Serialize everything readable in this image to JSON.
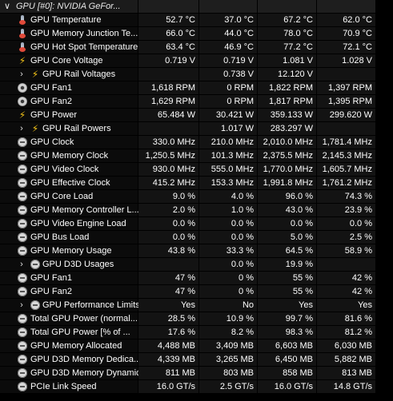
{
  "header": {
    "title": "GPU [#0]: NVIDIA GeFor..."
  },
  "rows": [
    {
      "label": "GPU Temperature",
      "icon": "thermometer-icon",
      "v": [
        "52.7 °C",
        "37.0 °C",
        "67.2 °C",
        "62.0 °C"
      ]
    },
    {
      "label": "GPU Memory Junction Te...",
      "icon": "thermometer-icon",
      "v": [
        "66.0 °C",
        "44.0 °C",
        "78.0 °C",
        "70.9 °C"
      ]
    },
    {
      "label": "GPU Hot Spot Temperature",
      "icon": "thermometer-icon",
      "v": [
        "63.4 °C",
        "46.9 °C",
        "77.2 °C",
        "72.1 °C"
      ]
    },
    {
      "label": "GPU Core Voltage",
      "icon": "lightning-icon",
      "v": [
        "0.719 V",
        "0.719 V",
        "1.081 V",
        "1.028 V"
      ]
    },
    {
      "label": "GPU Rail Voltages",
      "icon": "lightning-icon",
      "sub": true,
      "v": [
        "",
        "0.738 V",
        "12.120 V",
        ""
      ]
    },
    {
      "label": "GPU Fan1",
      "icon": "fan-icon",
      "v": [
        "1,618 RPM",
        "0 RPM",
        "1,822 RPM",
        "1,397 RPM"
      ]
    },
    {
      "label": "GPU Fan2",
      "icon": "fan-icon",
      "v": [
        "1,629 RPM",
        "0 RPM",
        "1,817 RPM",
        "1,395 RPM"
      ]
    },
    {
      "label": "GPU Power",
      "icon": "lightning-icon",
      "v": [
        "65.484 W",
        "30.421 W",
        "359.133 W",
        "299.620 W"
      ]
    },
    {
      "label": "GPU Rail Powers",
      "icon": "lightning-icon",
      "sub": true,
      "v": [
        "",
        "1.017 W",
        "283.297 W",
        ""
      ]
    },
    {
      "label": "GPU Clock",
      "icon": "clock-icon",
      "v": [
        "330.0 MHz",
        "210.0 MHz",
        "2,010.0 MHz",
        "1,781.4 MHz"
      ]
    },
    {
      "label": "GPU Memory Clock",
      "icon": "clock-icon",
      "v": [
        "1,250.5 MHz",
        "101.3 MHz",
        "2,375.5 MHz",
        "2,145.3 MHz"
      ]
    },
    {
      "label": "GPU Video Clock",
      "icon": "clock-icon",
      "v": [
        "930.0 MHz",
        "555.0 MHz",
        "1,770.0 MHz",
        "1,605.7 MHz"
      ]
    },
    {
      "label": "GPU Effective Clock",
      "icon": "clock-icon",
      "v": [
        "415.2 MHz",
        "153.3 MHz",
        "1,991.8 MHz",
        "1,761.2 MHz"
      ]
    },
    {
      "label": "GPU Core Load",
      "icon": "clock-icon",
      "v": [
        "9.0 %",
        "4.0 %",
        "96.0 %",
        "74.3 %"
      ]
    },
    {
      "label": "GPU Memory Controller L...",
      "icon": "clock-icon",
      "v": [
        "2.0 %",
        "1.0 %",
        "43.0 %",
        "23.9 %"
      ]
    },
    {
      "label": "GPU Video Engine Load",
      "icon": "clock-icon",
      "v": [
        "0.0 %",
        "0.0 %",
        "0.0 %",
        "0.0 %"
      ]
    },
    {
      "label": "GPU Bus Load",
      "icon": "clock-icon",
      "v": [
        "0.0 %",
        "0.0 %",
        "5.0 %",
        "2.5 %"
      ]
    },
    {
      "label": "GPU Memory Usage",
      "icon": "clock-icon",
      "v": [
        "43.8 %",
        "33.3 %",
        "64.5 %",
        "58.9 %"
      ]
    },
    {
      "label": "GPU D3D Usages",
      "icon": "clock-icon",
      "sub": true,
      "v": [
        "",
        "0.0 %",
        "19.9 %",
        ""
      ]
    },
    {
      "label": "GPU Fan1",
      "icon": "clock-icon",
      "v": [
        "47 %",
        "0 %",
        "55 %",
        "42 %"
      ]
    },
    {
      "label": "GPU Fan2",
      "icon": "clock-icon",
      "v": [
        "47 %",
        "0 %",
        "55 %",
        "42 %"
      ]
    },
    {
      "label": "GPU Performance Limits",
      "icon": "clock-icon",
      "sub": true,
      "v": [
        "Yes",
        "No",
        "Yes",
        "Yes"
      ]
    },
    {
      "label": "Total GPU Power (normal...",
      "icon": "clock-icon",
      "v": [
        "28.5 %",
        "10.9 %",
        "99.7 %",
        "81.6 %"
      ]
    },
    {
      "label": "Total GPU Power [% of ...",
      "icon": "clock-icon",
      "v": [
        "17.6 %",
        "8.2 %",
        "98.3 %",
        "81.2 %"
      ]
    },
    {
      "label": "GPU Memory Allocated",
      "icon": "clock-icon",
      "v": [
        "4,488 MB",
        "3,409 MB",
        "6,603 MB",
        "6,030 MB"
      ]
    },
    {
      "label": "GPU D3D Memory Dedica...",
      "icon": "clock-icon",
      "v": [
        "4,339 MB",
        "3,265 MB",
        "6,450 MB",
        "5,882 MB"
      ]
    },
    {
      "label": "GPU D3D Memory Dynamic",
      "icon": "clock-icon",
      "v": [
        "811 MB",
        "803 MB",
        "858 MB",
        "813 MB"
      ]
    },
    {
      "label": "PCIe Link Speed",
      "icon": "clock-icon",
      "v": [
        "16.0 GT/s",
        "2.5 GT/s",
        "16.0 GT/s",
        "14.8 GT/s"
      ]
    }
  ]
}
